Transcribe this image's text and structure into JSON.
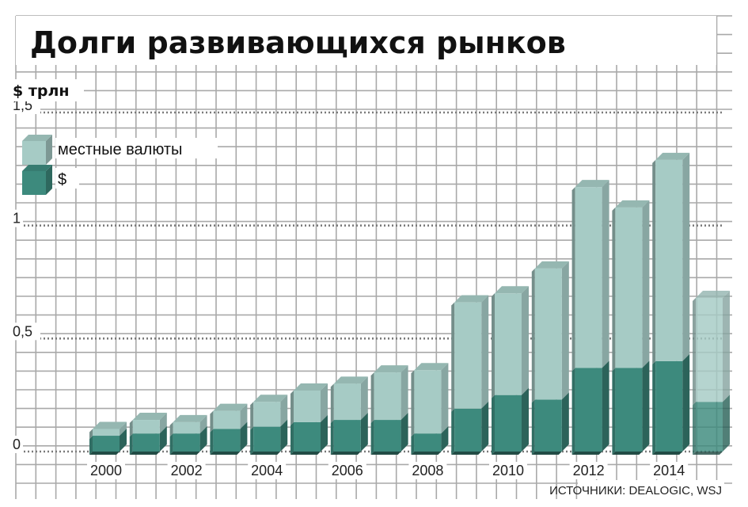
{
  "chart_data": {
    "type": "bar",
    "stacked": true,
    "title": "Долги развивающихся рынков",
    "unit_label": "$ трлн",
    "source": "ИСТОЧНИКИ: DEALOGIC, WSJ",
    "categories": [
      "2000",
      "2001",
      "2002",
      "2003",
      "2004",
      "2005",
      "2006",
      "2007",
      "2008",
      "2009",
      "2010",
      "2011",
      "2012",
      "2013",
      "2014",
      "2015"
    ],
    "x_tick_labels": [
      "2000",
      "2002",
      "2004",
      "2006",
      "2008",
      "2010",
      "2012",
      "2014"
    ],
    "y_ticks": [
      {
        "value": 0,
        "label": "0"
      },
      {
        "value": 0.5,
        "label": "0,5"
      },
      {
        "value": 1,
        "label": "1"
      },
      {
        "value": 1.5,
        "label": "1,5"
      }
    ],
    "ylim": [
      0,
      1.5
    ],
    "series": [
      {
        "name": "$",
        "color": "#3d8a7d",
        "values": [
          0.07,
          0.08,
          0.08,
          0.1,
          0.11,
          0.13,
          0.14,
          0.14,
          0.08,
          0.19,
          0.25,
          0.23,
          0.37,
          0.37,
          0.4,
          0.22
        ]
      },
      {
        "name": "местные валюты",
        "color": "#a6cbc5",
        "values": [
          0.03,
          0.06,
          0.05,
          0.08,
          0.11,
          0.14,
          0.16,
          0.21,
          0.28,
          0.47,
          0.45,
          0.58,
          0.8,
          0.71,
          0.89,
          0.46
        ]
      }
    ],
    "last_bar_estimate": true,
    "legend_position": "top-left",
    "grid": true
  }
}
